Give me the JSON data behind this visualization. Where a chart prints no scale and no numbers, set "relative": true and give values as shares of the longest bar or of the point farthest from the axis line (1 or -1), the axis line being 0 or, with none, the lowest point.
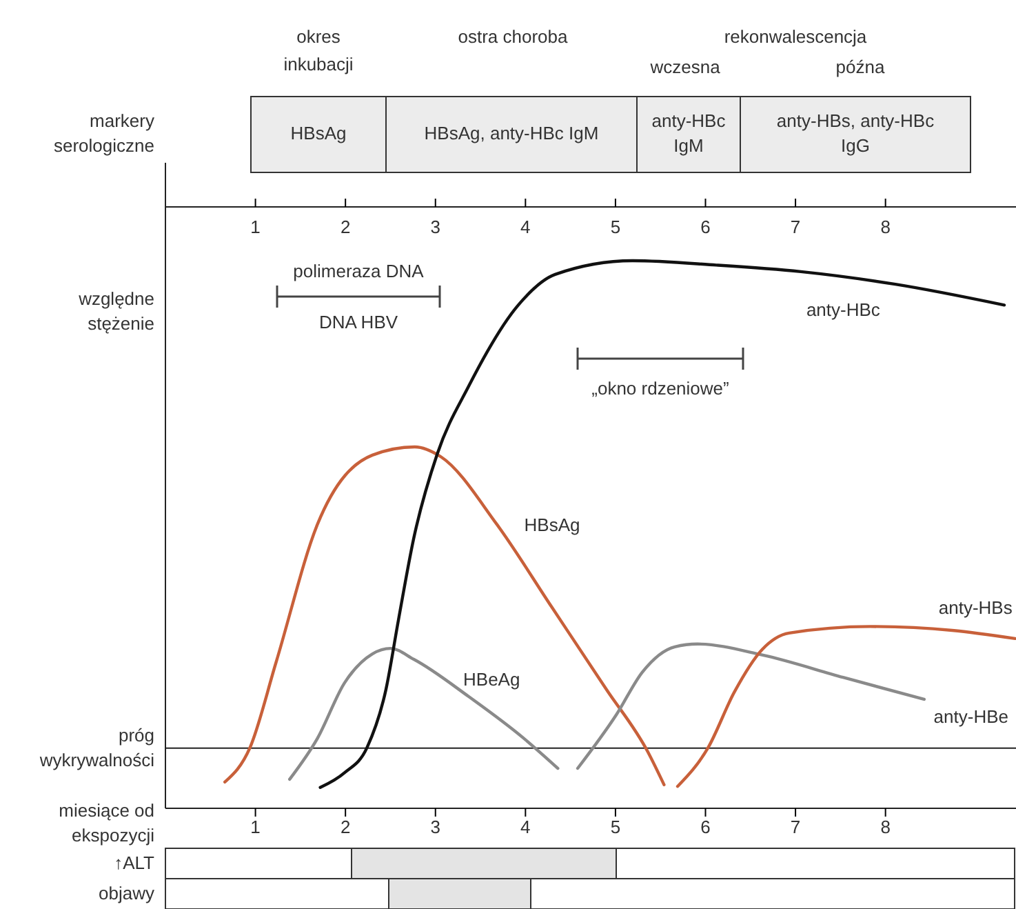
{
  "chart_data": {
    "type": "line",
    "relative": true,
    "xlim": [
      0,
      9.45
    ],
    "xticks": [
      1,
      2,
      3,
      4,
      5,
      6,
      7,
      8
    ],
    "x2lim": [
      0,
      9.45
    ],
    "x2ticks": [
      1,
      2,
      3,
      4,
      5,
      6,
      7,
      8
    ],
    "xlabel": "miesiące od ekspozycji",
    "ylabel": "względne stężenie",
    "legend": false,
    "grid": false,
    "marker": "none",
    "series": [
      {
        "name": "HBsAg",
        "color": "#c8603a",
        "x": [
          0.66,
          0.94,
          1.23,
          1.69,
          2.3,
          2.77,
          3.06,
          3.68,
          4.29,
          4.9,
          5.36,
          5.54
        ],
        "values": [
          0.048,
          0.111,
          0.267,
          0.519,
          0.645,
          0.66,
          0.642,
          0.519,
          0.368,
          0.217,
          0.103,
          0.043
        ]
      },
      {
        "name": "HBeAg",
        "color": "#8a8a8a",
        "x": [
          1.38,
          1.69,
          1.99,
          2.3,
          2.5,
          2.76,
          3.37,
          3.98,
          4.36
        ],
        "values": [
          0.053,
          0.128,
          0.229,
          0.282,
          0.292,
          0.272,
          0.204,
          0.128,
          0.073
        ]
      },
      {
        "name": "anty-HBc",
        "color": "#111111",
        "x": [
          1.72,
          1.99,
          2.24,
          2.45,
          2.59,
          2.76,
          3.02,
          3.37,
          3.92,
          4.33,
          5.19,
          6.12,
          7.06,
          8.11,
          9.32
        ],
        "values": [
          0.038,
          0.065,
          0.111,
          0.217,
          0.345,
          0.494,
          0.647,
          0.771,
          0.919,
          0.975,
          1,
          0.992,
          0.98,
          0.957,
          0.919
        ]
      },
      {
        "name": "anty-HBe",
        "color": "#8a8a8a",
        "x": [
          4.58,
          5.01,
          5.3,
          5.66,
          5.91,
          6.63,
          7.53,
          8.43
        ],
        "values": [
          0.073,
          0.171,
          0.249,
          0.295,
          0.3,
          0.28,
          0.239,
          0.199
        ]
      },
      {
        "name": "anty-HBs",
        "color": "#c8603a",
        "x": [
          5.69,
          6.03,
          6.32,
          6.63,
          6.93,
          7.83,
          8.74,
          9.44
        ],
        "values": [
          0.04,
          0.111,
          0.212,
          0.29,
          0.32,
          0.332,
          0.325,
          0.31
        ]
      }
    ],
    "ref_lines": [
      {
        "axis": "y",
        "value": 0.11,
        "label": "próg wykrywalności",
        "color": "#222222"
      }
    ],
    "annotations": [
      "okres inkubacji",
      "ostra choroba",
      "rekonwalescencja",
      "wczesna",
      "późna",
      "markery serologiczne",
      "HBsAg",
      "HBsAg, anty-HBc IgM",
      "anty-HBc IgM",
      "anty-HBs, anty-HBc IgG",
      "↑ALT",
      "objawy",
      "polimeraza DNA",
      "DNA HBV",
      "„okno rdzeniowe”"
    ]
  }
}
